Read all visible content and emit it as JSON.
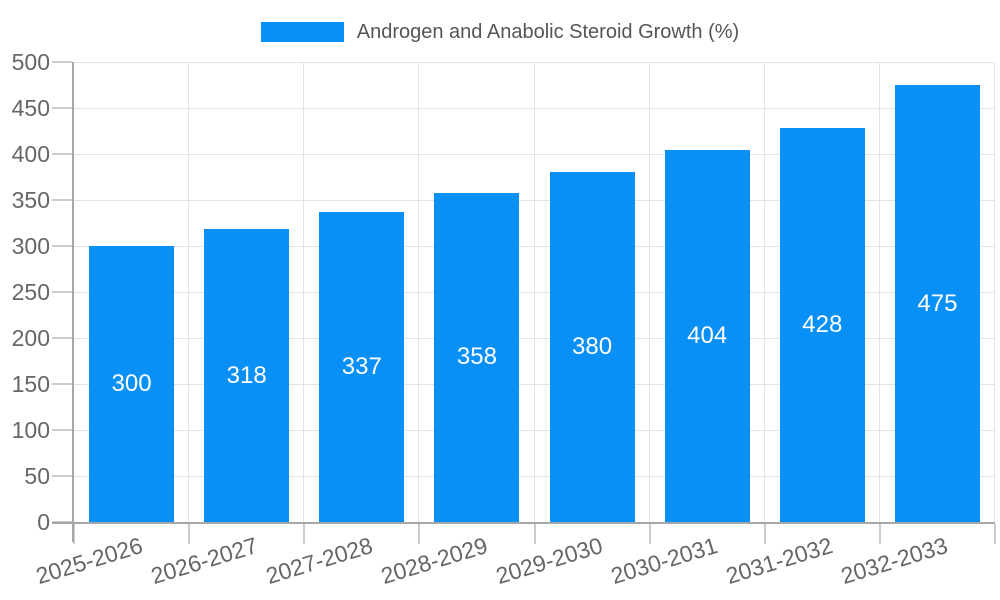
{
  "legend": {
    "items": [
      {
        "label": "Androgen and Anabolic Steroid Growth (%)",
        "color": "#0990f7"
      }
    ]
  },
  "chart_data": {
    "type": "bar",
    "title": "Androgen and Anabolic Steroid Growth (%)",
    "categories": [
      "2025-2026",
      "2026-2027",
      "2027-2028",
      "2028-2029",
      "2029-2030",
      "2030-2031",
      "2031-2032",
      "2032-2033"
    ],
    "series": [
      {
        "name": "Androgen and Anabolic Steroid Growth (%)",
        "values": [
          300,
          318,
          337,
          358,
          380,
          404,
          428,
          475
        ],
        "color": "#0990f7"
      }
    ],
    "xlabel": "",
    "ylabel": "",
    "ylim": [
      0,
      500
    ],
    "ytick_step": 50,
    "yticks": [
      0,
      50,
      100,
      150,
      200,
      250,
      300,
      350,
      400,
      450,
      500
    ],
    "grid": true,
    "legend_position": "top-center",
    "value_labels": "inside-center",
    "x_label_rotation_deg": -17
  },
  "colors": {
    "background": "#ffffff",
    "bar": "#0990f7",
    "grid_line": "#e3e3e3",
    "axis_line": "#a6a6a6",
    "tick": "#cccccc",
    "axis_text": "#666666",
    "legend_text": "#555555",
    "value_label": "#ffffff"
  }
}
